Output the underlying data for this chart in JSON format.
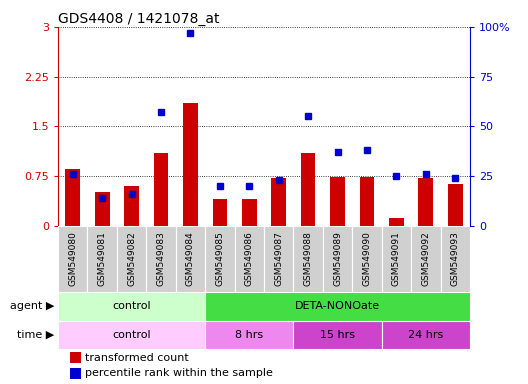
{
  "title": "GDS4408 / 1421078_at",
  "samples": [
    "GSM549080",
    "GSM549081",
    "GSM549082",
    "GSM549083",
    "GSM549084",
    "GSM549085",
    "GSM549086",
    "GSM549087",
    "GSM549088",
    "GSM549089",
    "GSM549090",
    "GSM549091",
    "GSM549092",
    "GSM549093"
  ],
  "transformed_count": [
    0.85,
    0.5,
    0.6,
    1.1,
    1.85,
    0.4,
    0.4,
    0.72,
    1.1,
    0.73,
    0.73,
    0.12,
    0.72,
    0.63
  ],
  "percentile_rank": [
    26,
    14,
    16,
    57,
    97,
    20,
    20,
    23,
    55,
    37,
    38,
    25,
    26,
    24
  ],
  "bar_color": "#cc0000",
  "dot_color": "#0000cc",
  "ylim_left": [
    0,
    3
  ],
  "ylim_right": [
    0,
    100
  ],
  "yticks_left": [
    0,
    0.75,
    1.5,
    2.25,
    3
  ],
  "yticks_right": [
    0,
    25,
    50,
    75,
    100
  ],
  "ytick_labels_left": [
    "0",
    "0.75",
    "1.5",
    "2.25",
    "3"
  ],
  "ytick_labels_right": [
    "0",
    "25",
    "50",
    "75",
    "100%"
  ],
  "agent_groups": [
    {
      "label": "control",
      "start": 0,
      "end": 5,
      "color": "#ccffcc"
    },
    {
      "label": "DETA-NONOate",
      "start": 5,
      "end": 14,
      "color": "#44dd44"
    }
  ],
  "time_groups": [
    {
      "label": "control",
      "start": 0,
      "end": 5,
      "color": "#ffccff"
    },
    {
      "label": "8 hrs",
      "start": 5,
      "end": 8,
      "color": "#ee88ee"
    },
    {
      "label": "15 hrs",
      "start": 8,
      "end": 11,
      "color": "#cc44cc"
    },
    {
      "label": "24 hrs",
      "start": 11,
      "end": 14,
      "color": "#cc44cc"
    }
  ],
  "legend_bar_label": "transformed count",
  "legend_dot_label": "percentile rank within the sample",
  "tick_label_color_left": "#cc0000",
  "tick_label_color_right": "#0000cc",
  "sample_label_bg": "#d0d0d0",
  "fig_bg": "#ffffff"
}
